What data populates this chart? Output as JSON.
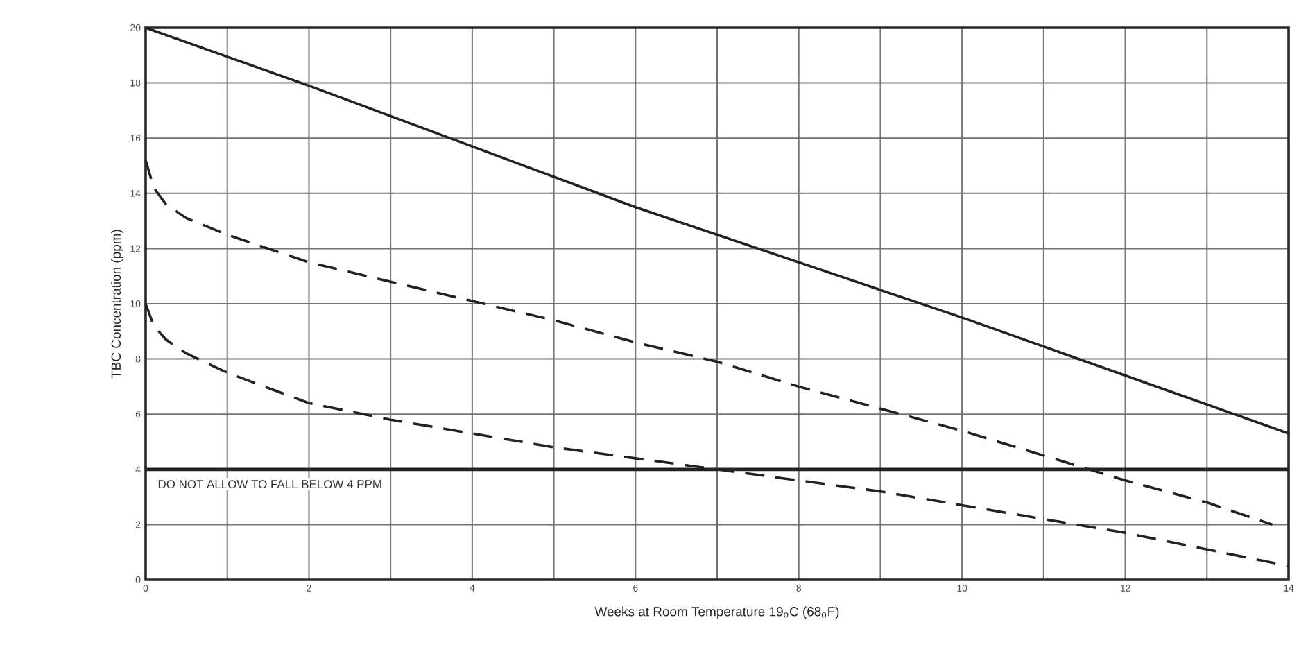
{
  "chart_data": {
    "type": "line",
    "xlabel": "Weeks at Room Temperature 19$_{o}$C (68$_{o}$F)",
    "ylabel": "TBC Concentration (ppm)",
    "xlim": [
      0,
      14
    ],
    "ylim": [
      0,
      20
    ],
    "xticks": [
      0,
      {
        "value": 1,
        "label": null
      },
      2,
      {
        "value": 3,
        "label": null
      },
      4,
      {
        "value": 5,
        "label": null
      },
      6,
      {
        "value": 7,
        "label": null
      },
      8,
      {
        "value": 9,
        "label": null
      },
      10,
      {
        "value": 11,
        "label": null
      },
      12,
      {
        "value": 13,
        "label": null
      },
      14
    ],
    "yticks": [
      0,
      2,
      4,
      6,
      8,
      10,
      12,
      14,
      16,
      18,
      20
    ],
    "grid": true,
    "series": [
      {
        "color": "#222222",
        "line_style": "solid",
        "x": [
          0,
          2,
          4,
          6,
          8,
          10,
          12,
          14
        ],
        "values": [
          20,
          17.9,
          15.7,
          13.5,
          11.5,
          9.5,
          7.4,
          5.3
        ]
      },
      {
        "color": "#222222",
        "line_style": "dashed",
        "x": [
          0,
          0.1,
          0.25,
          0.5,
          1,
          2,
          3,
          4,
          5,
          6,
          7,
          8,
          9,
          10,
          11,
          12,
          13,
          13.8
        ],
        "values": [
          15.2,
          14.2,
          13.6,
          13.1,
          12.5,
          11.5,
          10.8,
          10.1,
          9.4,
          8.6,
          7.9,
          7.0,
          6.2,
          5.4,
          4.5,
          3.6,
          2.8,
          2.0
        ]
      },
      {
        "color": "#222222",
        "line_style": "dashed",
        "x": [
          0,
          0.1,
          0.25,
          0.5,
          1,
          2,
          3,
          4,
          5,
          6,
          7,
          8,
          9,
          10,
          11,
          12,
          13,
          14
        ],
        "values": [
          10,
          9.2,
          8.7,
          8.2,
          7.5,
          6.4,
          5.8,
          5.3,
          4.8,
          4.4,
          4.0,
          3.6,
          3.2,
          2.7,
          2.2,
          1.7,
          1.1,
          0.5
        ]
      }
    ],
    "ref_lines": [
      {
        "axis": "y",
        "value": 4,
        "label": "DO NOT ALLOW TO FALL BELOW 4 PPM",
        "color": "#222222",
        "line_style": "solid"
      }
    ]
  }
}
